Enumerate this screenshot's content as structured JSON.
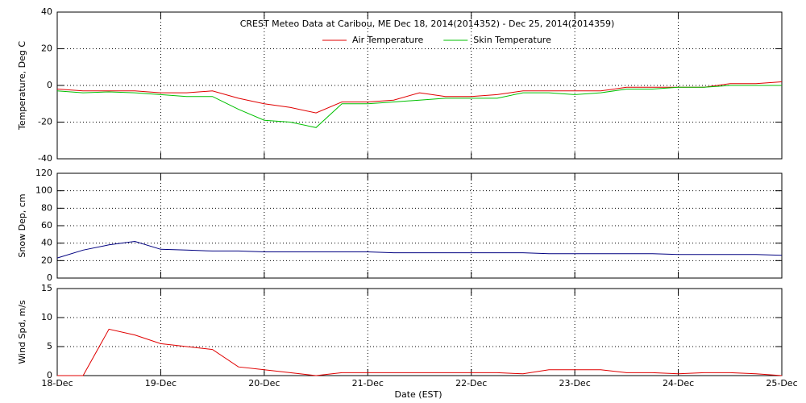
{
  "chart_data": [
    {
      "type": "line",
      "title": "CREST Meteo Data at Caribou, ME   Dec 18, 2014(2014352) - Dec 25, 2014(2014359)",
      "ylabel": "Temperature, Deg C",
      "x": [
        0,
        0.25,
        0.5,
        0.75,
        1,
        1.25,
        1.5,
        1.75,
        2,
        2.25,
        2.5,
        2.75,
        3,
        3.25,
        3.5,
        3.75,
        4,
        4.25,
        4.5,
        4.75,
        5,
        5.25,
        5.5,
        5.75,
        6,
        6.25,
        6.5,
        6.75,
        7
      ],
      "xlim": [
        0,
        7
      ],
      "ylim": [
        -40,
        40
      ],
      "yticks": [
        -40,
        -20,
        0,
        20,
        40
      ],
      "grid": true,
      "series": [
        {
          "name": "Air Temperature",
          "color": "#e00000",
          "values": [
            -2,
            -3,
            -3,
            -3,
            -4,
            -4,
            -3,
            -7,
            -10,
            -12,
            -15,
            -9,
            -9,
            -8,
            -4,
            -6,
            -6,
            -5,
            -3,
            -3,
            -3,
            -3,
            -1,
            -1,
            -1,
            -1,
            1,
            1,
            2
          ]
        },
        {
          "name": "Skin Temperature",
          "color": "#00c000",
          "values": [
            -3,
            -4,
            -3.5,
            -4,
            -5,
            -6,
            -6,
            -13,
            -19,
            -20,
            -23,
            -10,
            -10,
            -9,
            -8,
            -7,
            -7,
            -7,
            -4,
            -4,
            -5,
            -4,
            -2,
            -2,
            -1,
            -1,
            0,
            0,
            0
          ]
        }
      ]
    },
    {
      "type": "line",
      "ylabel": "Snow Dep, cm",
      "x": [
        0,
        0.25,
        0.5,
        0.75,
        1,
        1.25,
        1.5,
        1.75,
        2,
        2.25,
        2.5,
        2.75,
        3,
        3.25,
        3.5,
        3.75,
        4,
        4.25,
        4.5,
        4.75,
        5,
        5.25,
        5.5,
        5.75,
        6,
        6.25,
        6.5,
        6.75,
        7
      ],
      "xlim": [
        0,
        7
      ],
      "ylim": [
        0,
        120
      ],
      "yticks": [
        0,
        20,
        40,
        60,
        80,
        100,
        120
      ],
      "grid": true,
      "series": [
        {
          "color": "#000080",
          "values": [
            23,
            32,
            38,
            42,
            33,
            32,
            31,
            31,
            30,
            30,
            30,
            30,
            30,
            29,
            29,
            29,
            29,
            29,
            29,
            28,
            28,
            28,
            28,
            28,
            27,
            27,
            27,
            27,
            26
          ]
        }
      ]
    },
    {
      "type": "line",
      "ylabel": "Wind Spd, m/s",
      "xlabel": "Date (EST)",
      "x": [
        0,
        0.25,
        0.5,
        0.75,
        1,
        1.25,
        1.5,
        1.75,
        2,
        2.25,
        2.5,
        2.75,
        3,
        3.25,
        3.5,
        3.75,
        4,
        4.25,
        4.5,
        4.75,
        5,
        5.25,
        5.5,
        5.75,
        6,
        6.25,
        6.5,
        6.75,
        7
      ],
      "xlim": [
        0,
        7
      ],
      "xticks": [
        {
          "value": 0,
          "label": "18-Dec"
        },
        {
          "value": 1,
          "label": "19-Dec"
        },
        {
          "value": 2,
          "label": "20-Dec"
        },
        {
          "value": 3,
          "label": "21-Dec"
        },
        {
          "value": 4,
          "label": "22-Dec"
        },
        {
          "value": 5,
          "label": "23-Dec"
        },
        {
          "value": 6,
          "label": "24-Dec"
        },
        {
          "value": 7,
          "label": "25-Dec"
        }
      ],
      "ylim": [
        0,
        15
      ],
      "yticks": [
        0,
        5,
        10,
        15
      ],
      "grid": true,
      "series": [
        {
          "color": "#e00000",
          "values": [
            0,
            0,
            8,
            7,
            5.5,
            5,
            4.5,
            1.5,
            1,
            0.5,
            0,
            0.5,
            0.5,
            0.5,
            0.5,
            0.5,
            0.5,
            0.5,
            0.3,
            1,
            1,
            1,
            0.5,
            0.5,
            0.3,
            0.5,
            0.5,
            0.3,
            0
          ]
        }
      ]
    }
  ]
}
